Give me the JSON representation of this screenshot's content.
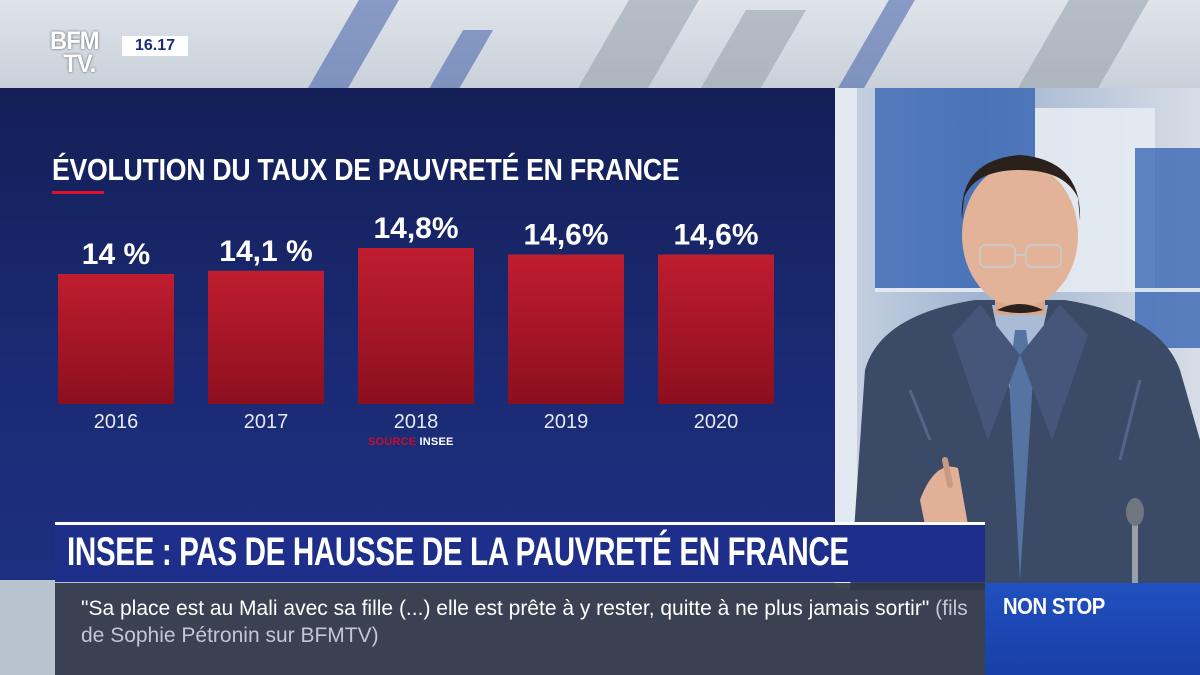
{
  "channel": {
    "logo": "BFM TV.",
    "logo_line1": "BFM",
    "logo_line2": "TV.",
    "clock": "16.17"
  },
  "chart_data": {
    "type": "bar",
    "title": "ÉVOLUTION DU TAUX DE PAUVRETÉ EN FRANCE",
    "categories": [
      "2016",
      "2017",
      "2018",
      "2019",
      "2020"
    ],
    "values": [
      14,
      14.1,
      14.8,
      14.6,
      14.6
    ],
    "value_labels": [
      "14 %",
      "14,1 %",
      "14,8%",
      "14,6%",
      "14,6%"
    ],
    "unit": "%",
    "source_label": "SOURCE",
    "source_org": "INSEE",
    "bar_color": "#b3162a",
    "xlabel": "",
    "ylabel": ""
  },
  "headline": "INSEE : PAS DE HAUSSE DE LA PAUVRETÉ EN FRANCE",
  "quote": {
    "text": "\"Sa place est au Mali avec sa fille (...) elle est prête à y rester, quitte à ne plus jamais sortir\"",
    "attribution": "(fils de Sophie Pétronin sur BFMTV)"
  },
  "ticker_label": "NON STOP",
  "colors": {
    "panel": "#1a2a73",
    "headline_bar": "#1d2f8a",
    "accent_red": "#e0102a",
    "nonstop_blue": "#2050c0"
  }
}
